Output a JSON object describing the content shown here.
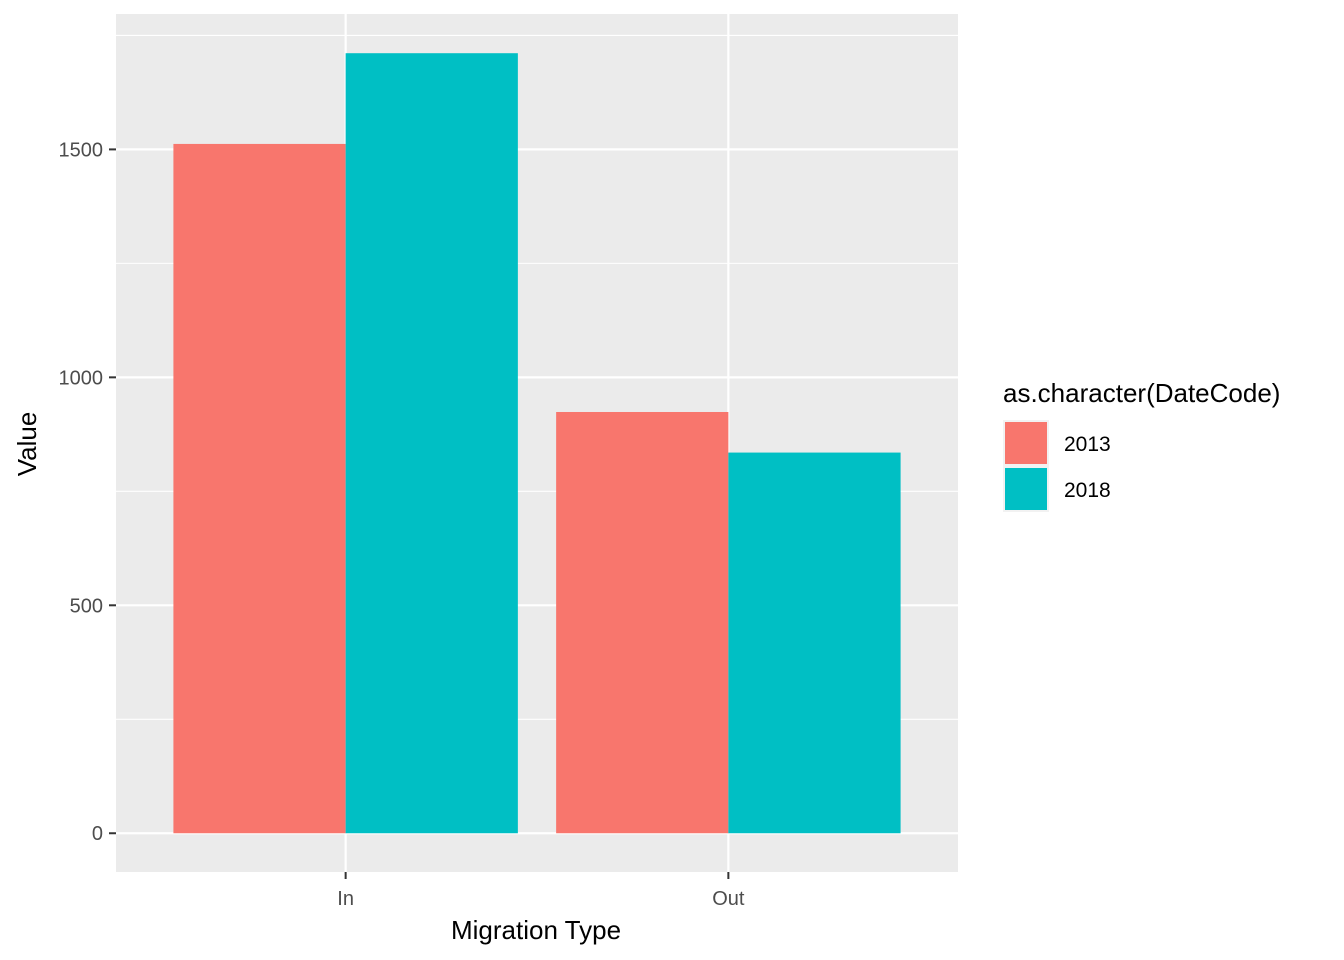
{
  "chart_data": {
    "type": "bar",
    "subtype": "grouped",
    "categories": [
      "In",
      "Out"
    ],
    "series": [
      {
        "name": "2013",
        "values": [
          1512,
          924
        ],
        "color": "#F8766D"
      },
      {
        "name": "2018",
        "values": [
          1711,
          835
        ],
        "color": "#00BFC4"
      }
    ],
    "xlabel": "Migration Type",
    "ylabel": "Value",
    "ylim": [
      -85,
      1797
    ],
    "y_ticks": [
      0,
      500,
      1000,
      1500
    ],
    "y_tick_labels": [
      "0",
      "500",
      "1000",
      "1500"
    ],
    "grid": true,
    "legend": {
      "title": "as.character(DateCode)",
      "position": "right"
    },
    "colors": {
      "panel_background": "#EBEBEB",
      "grid": "#FFFFFF",
      "axis_text": "#4D4D4D",
      "tick": "#333333"
    }
  }
}
